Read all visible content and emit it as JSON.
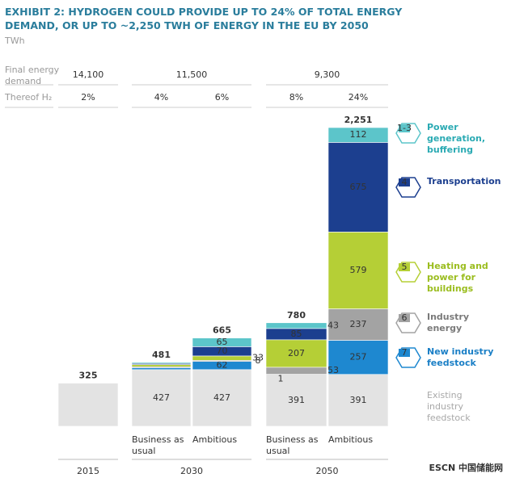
{
  "chart_data": {
    "type": "stacked-bar",
    "title": "EXHIBIT 2: HYDROGEN COULD PROVIDE UP TO 24% OF TOTAL ENERGY DEMAND, OR UP TO ~2,250 TWH OF ENERGY IN THE EU BY 2050",
    "subtitle": "TWh",
    "table": {
      "rows": [
        {
          "label": "Final energy demand",
          "cells": [
            "14,100",
            "11,500",
            "9,300"
          ]
        },
        {
          "label": "Thereof H₂",
          "cells": [
            "2%",
            "4%",
            "6%",
            "8%",
            "24%"
          ]
        }
      ]
    },
    "groups": [
      "2015",
      "2030",
      "2050"
    ],
    "categories": [
      null,
      "Business as usual",
      "Ambitious",
      "Business as usual",
      "Ambitious"
    ],
    "total_labels": [
      "325",
      "481",
      "665",
      "780",
      "2,251"
    ],
    "series": [
      {
        "name": "Existing industry feedstock",
        "color": "#e3e3e3",
        "text_color": "#a8a8a8",
        "values": [
          325,
          427,
          427,
          391,
          391
        ],
        "value_labels": [
          null,
          "427",
          "427",
          "391",
          "391"
        ]
      },
      {
        "name": "New industry feedstock",
        "badge": "7",
        "color": "#1e88d0",
        "text_color": "#1a7fc6",
        "values": [
          null,
          14,
          62,
          1,
          257
        ],
        "value_labels": [
          null,
          null,
          "62",
          "1",
          "257"
        ]
      },
      {
        "name": "Industry energy",
        "badge": "6",
        "color": "#a3a3a3",
        "text_color": "#7a7a7a",
        "values": [
          null,
          8,
          8,
          53,
          237
        ],
        "value_labels": [
          null,
          null,
          "8",
          "53",
          "237"
        ]
      },
      {
        "name": "Heating and power for buildings",
        "badge": "5",
        "color": "#b5cf36",
        "text_color": "#9bbd1f",
        "values": [
          null,
          16,
          33,
          207,
          579
        ],
        "value_labels": [
          null,
          null,
          "33",
          "207",
          "579"
        ]
      },
      {
        "name": "Transportation",
        "badge": "4",
        "color": "#1c3f8f",
        "text_color": "#1c3f8f",
        "values": [
          null,
          8,
          70,
          85,
          675
        ],
        "value_labels": [
          null,
          null,
          "70",
          "85",
          "675"
        ]
      },
      {
        "name": "Power generation, buffering",
        "badge": "1-3",
        "color": "#5cc5ca",
        "text_color": "#2aaab3",
        "values": [
          null,
          8,
          65,
          43,
          112
        ],
        "value_labels": [
          null,
          null,
          "65",
          "43",
          "112"
        ]
      }
    ],
    "watermark": "ESCN 中国储能网"
  }
}
